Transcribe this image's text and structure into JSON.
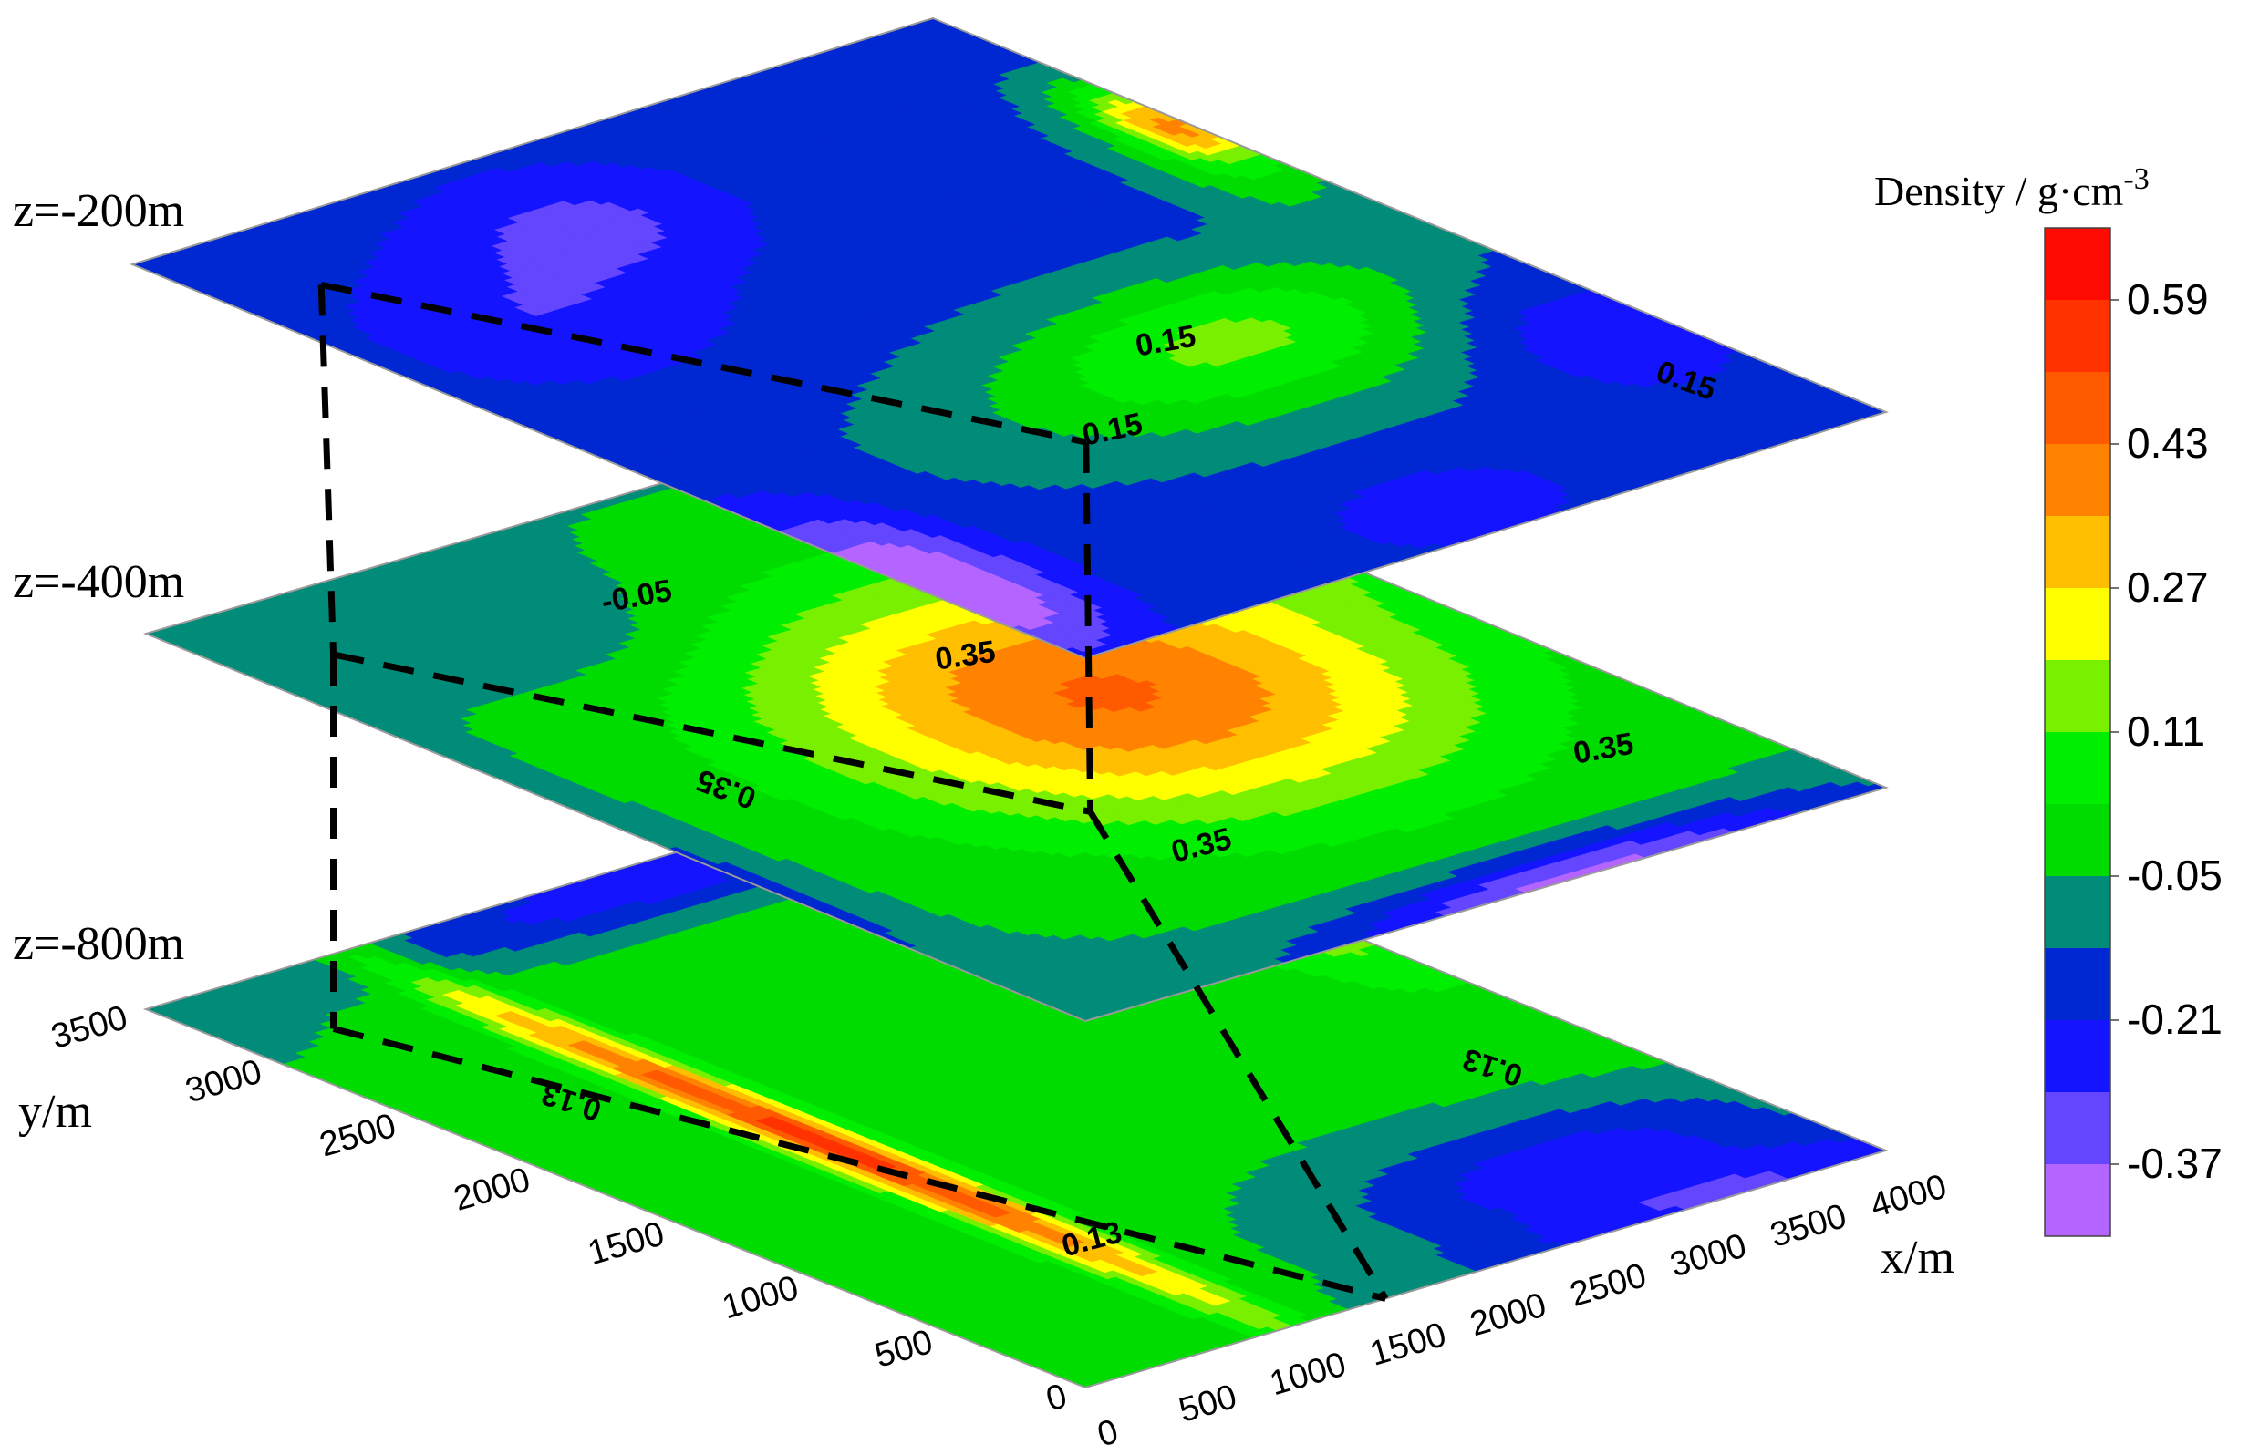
{
  "chart_data": {
    "type": "heatmap",
    "x_axis": {
      "label": "x/m",
      "min": 0,
      "max": 4000,
      "ticks": [
        0,
        500,
        1000,
        1500,
        2000,
        2500,
        3000,
        3500,
        4000
      ]
    },
    "y_axis": {
      "label": "y/m",
      "min": 0,
      "max": 3500,
      "ticks": [
        0,
        500,
        1000,
        1500,
        2000,
        2500,
        3000,
        3500
      ]
    },
    "colorbar": {
      "title": "Density / g·cm",
      "title_exponent": "-3",
      "tick_labels": [
        "0.59",
        "0.43",
        "0.27",
        "0.11",
        "-0.05",
        "-0.21",
        "-0.37"
      ],
      "bins": [
        {
          "min": 0.67,
          "color": "#ff0a00"
        },
        {
          "min": 0.59,
          "color": "#ff3200"
        },
        {
          "min": 0.51,
          "color": "#ff5a00"
        },
        {
          "min": 0.43,
          "color": "#ff8200"
        },
        {
          "min": 0.35,
          "color": "#ffbe00"
        },
        {
          "min": 0.27,
          "color": "#ffff00"
        },
        {
          "min": 0.19,
          "color": "#78f000"
        },
        {
          "min": 0.11,
          "color": "#00ee00"
        },
        {
          "min": 0.03,
          "color": "#00dc00"
        },
        {
          "min": -0.05,
          "color": "#008c78"
        },
        {
          "min": -0.13,
          "color": "#0028d2"
        },
        {
          "min": -0.21,
          "color": "#1414ff"
        },
        {
          "min": -0.29,
          "color": "#6446ff"
        },
        {
          "min": -0.37,
          "color": "#b464ff"
        }
      ]
    },
    "slices": [
      {
        "label": "z=-200m",
        "contour_labels": [
          "0.15",
          "0.15",
          "0.15"
        ]
      },
      {
        "label": "z=-400m",
        "contour_labels": [
          "-0.05",
          "0.35",
          "0.35",
          "0.35",
          "0.35"
        ]
      },
      {
        "label": "z=-800m",
        "contour_labels": [
          "0.13",
          "0.13",
          "0.13"
        ]
      }
    ]
  }
}
